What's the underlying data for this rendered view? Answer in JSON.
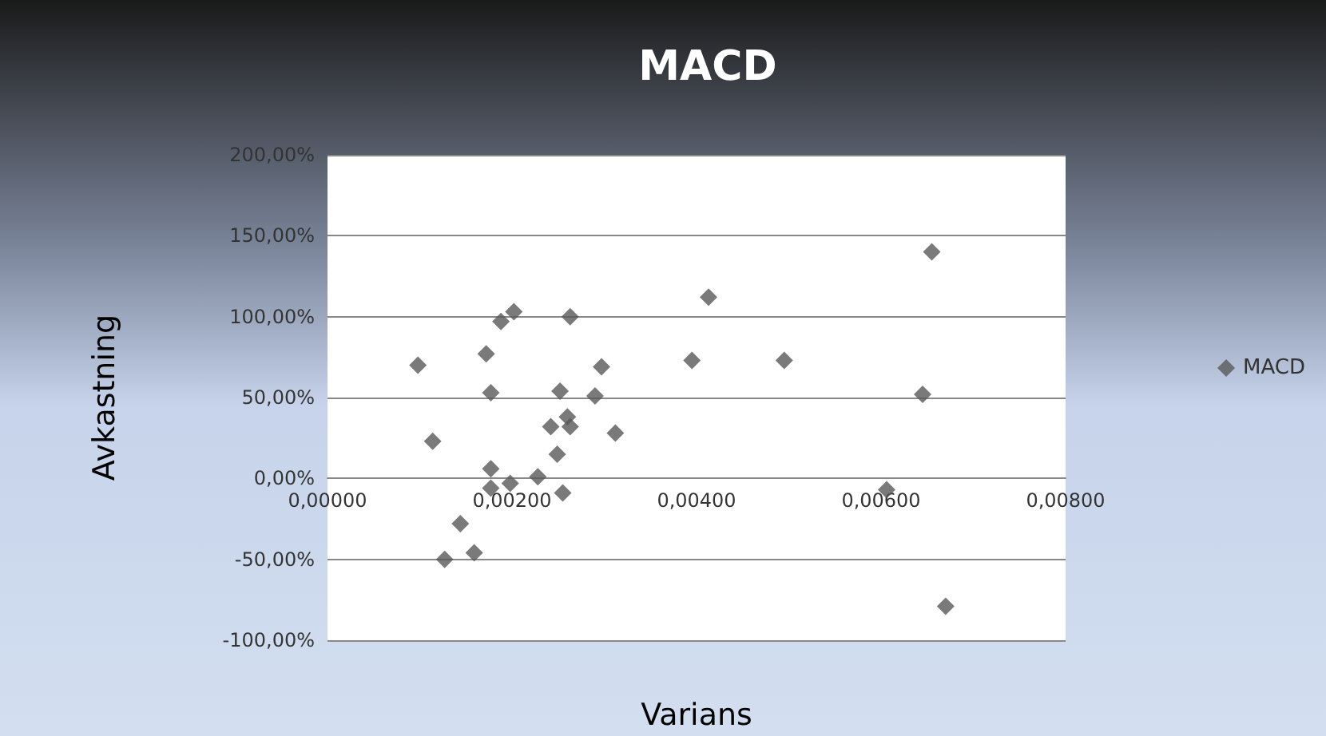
{
  "chart_data": {
    "type": "scatter",
    "title": "MACD",
    "xlabel": "Varians",
    "ylabel": "Avkastning",
    "series": [
      {
        "name": "MACD",
        "color": "#595959",
        "x": [
          0.00098,
          0.00172,
          0.00188,
          0.00202,
          0.00263,
          0.00177,
          0.00252,
          0.00297,
          0.0029,
          0.00114,
          0.00242,
          0.00257,
          0.0026,
          0.00263,
          0.00312,
          0.00249,
          0.00177,
          0.00177,
          0.00198,
          0.00228,
          0.00255,
          0.00144,
          0.00127,
          0.00159,
          0.00413,
          0.00395,
          0.00655,
          0.00495,
          0.00645,
          0.00606,
          0.0067
        ],
        "values": [
          70,
          77,
          97,
          103,
          100,
          53,
          54,
          69,
          51,
          23,
          32,
          null,
          38,
          32,
          28,
          15,
          6,
          -6,
          -3,
          1,
          -9,
          -28,
          -50,
          -46,
          112,
          73,
          140,
          73,
          52,
          -7,
          -79
        ]
      }
    ],
    "xlim": [
      0,
      0.008
    ],
    "xticks": [
      {
        "value": 0,
        "label": "0,00000"
      },
      {
        "value": 0.002,
        "label": "0,00200"
      },
      {
        "value": 0.004,
        "label": "0,00400"
      },
      {
        "value": 0.006,
        "label": "0,00600"
      },
      {
        "value": 0.008,
        "label": "0,00800"
      }
    ],
    "ylim": [
      -100,
      200
    ],
    "yticks": [
      {
        "value": -100,
        "label": "-100,00%"
      },
      {
        "value": -50,
        "label": "-50,00%"
      },
      {
        "value": 0,
        "label": "0,00%"
      },
      {
        "value": 50,
        "label": "50,00%"
      },
      {
        "value": 100,
        "label": "100,00%"
      },
      {
        "value": 150,
        "label": "150,00%"
      },
      {
        "value": 200,
        "label": "200,00%"
      }
    ],
    "grid": "y",
    "legend": "right",
    "marker": "diamond"
  }
}
